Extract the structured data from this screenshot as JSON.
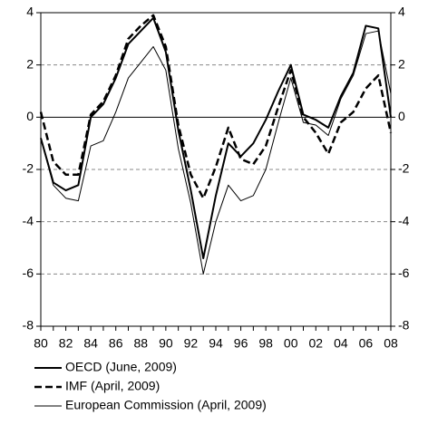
{
  "chart_data": {
    "type": "line",
    "categories": [
      "80",
      null,
      "82",
      null,
      "84",
      null,
      "86",
      null,
      "88",
      null,
      "90",
      null,
      "92",
      null,
      "94",
      null,
      "96",
      null,
      "98",
      null,
      "00",
      null,
      "02",
      null,
      "04",
      null,
      "06",
      null,
      "08"
    ],
    "series": [
      {
        "name": "OECD (June, 2009)",
        "color": "#000000",
        "width": 2,
        "dashed": false,
        "values": [
          -0.8,
          -2.5,
          -2.8,
          -2.6,
          0.0,
          0.5,
          1.5,
          2.8,
          3.3,
          3.8,
          2.5,
          -0.5,
          -2.8,
          -5.4,
          -3.0,
          -1.0,
          -1.5,
          -1.0,
          -0.1,
          1.0,
          2.0,
          0.1,
          -0.1,
          -0.4,
          0.8,
          1.7,
          3.5,
          3.4,
          0.0
        ]
      },
      {
        "name": "IMF (April, 2009)",
        "color": "#000000",
        "width": 2.5,
        "dashed": true,
        "values": [
          0.2,
          -1.7,
          -2.2,
          -2.2,
          0.1,
          0.6,
          1.6,
          3.0,
          3.5,
          3.9,
          2.7,
          -0.3,
          -2.2,
          -3.1,
          -1.9,
          -0.4,
          -1.6,
          -1.8,
          -1.1,
          0.4,
          1.8,
          0.0,
          -0.6,
          -1.4,
          -0.2,
          0.2,
          1.1,
          1.6,
          -0.6
        ]
      },
      {
        "name": "European Commission (April, 2009)",
        "color": "#000000",
        "width": 1,
        "dashed": false,
        "values": [
          -0.8,
          -2.6,
          -3.1,
          -3.2,
          -1.1,
          -0.9,
          0.2,
          1.5,
          2.1,
          2.7,
          1.8,
          -1.2,
          -3.3,
          -6.0,
          -4.0,
          -2.6,
          -3.2,
          -3.0,
          -2.0,
          -0.2,
          1.5,
          -0.2,
          -0.3,
          -0.7,
          0.7,
          1.6,
          3.2,
          3.3,
          0.9
        ]
      }
    ],
    "ylim": [
      -8,
      4
    ],
    "yticks": [
      -8,
      -6,
      -4,
      -2,
      0,
      2,
      4
    ],
    "y2lim": [
      -8,
      4
    ],
    "y2ticks": [
      -8,
      -6,
      -4,
      -2,
      0,
      2,
      4
    ],
    "grid": true,
    "legend": "bottom"
  }
}
